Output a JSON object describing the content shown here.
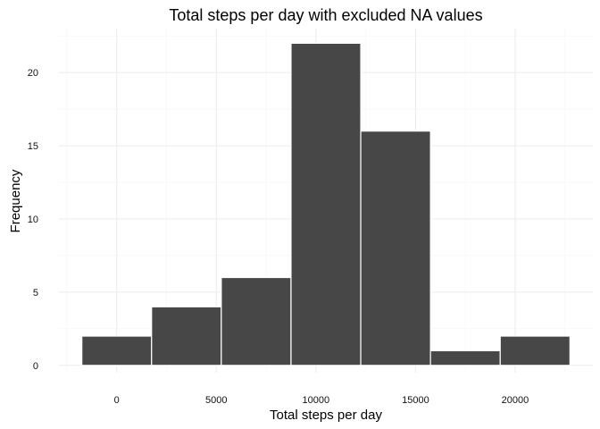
{
  "chart_data": {
    "type": "bar",
    "title": "Total steps per day with excluded NA values",
    "xlabel": "Total steps per day",
    "ylabel": "Frequency",
    "bins": [
      {
        "x0": -1750,
        "x1": 1750,
        "count": 2
      },
      {
        "x0": 1750,
        "x1": 5250,
        "count": 4
      },
      {
        "x0": 5250,
        "x1": 8750,
        "count": 6
      },
      {
        "x0": 8750,
        "x1": 12250,
        "count": 22
      },
      {
        "x0": 12250,
        "x1": 15750,
        "count": 16
      },
      {
        "x0": 15750,
        "x1": 19250,
        "count": 1
      },
      {
        "x0": 19250,
        "x1": 22750,
        "count": 2
      }
    ],
    "x_ticks": [
      0,
      5000,
      10000,
      15000,
      20000
    ],
    "y_ticks": [
      0,
      5,
      10,
      15,
      20
    ],
    "xlim": [
      -2900,
      23900
    ],
    "ylim": [
      -0.5,
      23
    ],
    "grid": true,
    "bar_color": "#474747",
    "bar_border_color": "#ffffff"
  }
}
